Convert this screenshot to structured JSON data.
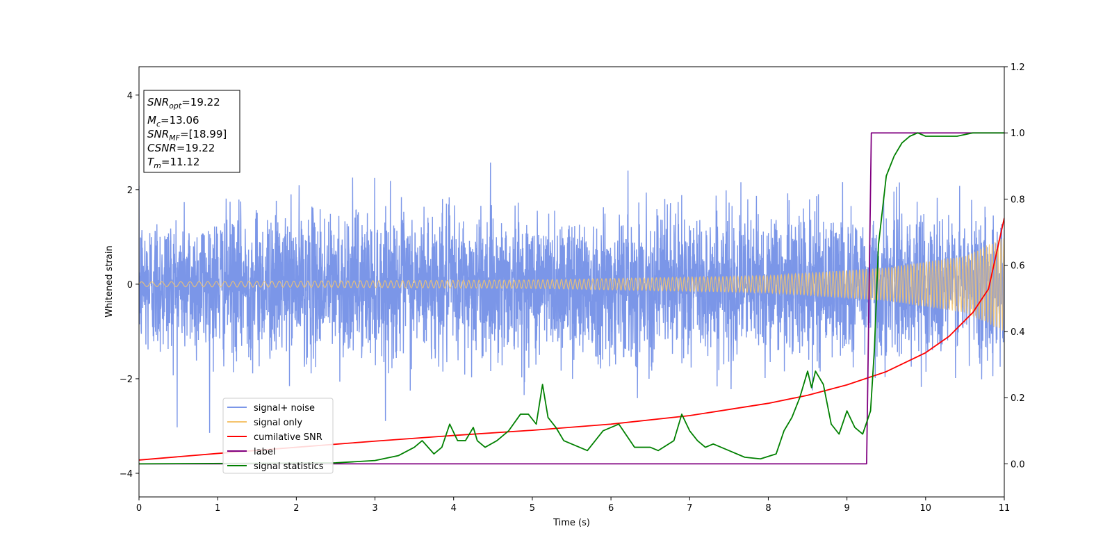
{
  "chart_data": {
    "type": "line",
    "xlabel": "Time (s)",
    "ylabel": "Whitened strain",
    "xlim": [
      0,
      11
    ],
    "ylim_left": [
      -4.5,
      4.6
    ],
    "ylim_right": [
      -0.1,
      1.2
    ],
    "x_ticks": [
      0,
      1,
      2,
      3,
      4,
      5,
      6,
      7,
      8,
      9,
      10,
      11
    ],
    "y_ticks_left": [
      -4,
      -2,
      0,
      2,
      4
    ],
    "y_ticks_right": [
      "0.0",
      "0.2",
      "0.4",
      "0.6",
      "0.8",
      "1.0",
      "1.2"
    ],
    "grid": false,
    "legend_position": "lower-left",
    "info_box": {
      "position": "top-left",
      "lines": [
        {
          "base": "SNR",
          "sub": "opt",
          "value": "=19.22"
        },
        {
          "base": "M",
          "sub": "c",
          "value": "=13.06"
        },
        {
          "base": "SNR",
          "sub": "MF",
          "value": "=[18.99]"
        },
        {
          "base": "CSNR",
          "sub": "",
          "value": "=19.22"
        },
        {
          "base": "T",
          "sub": "m",
          "value": "=11.12"
        }
      ]
    },
    "series": [
      {
        "name": "signal+ noise",
        "axis": "left",
        "color": "#7b96e8",
        "noise_std": 0.75,
        "noise_peak": 3.4
      },
      {
        "name": "signal only",
        "axis": "left",
        "color": "#f5c46c",
        "envelope": [
          [
            0,
            0.05
          ],
          [
            5,
            0.09
          ],
          [
            8,
            0.18
          ],
          [
            9.5,
            0.35
          ],
          [
            10.5,
            0.6
          ],
          [
            11,
            1.0
          ]
        ]
      },
      {
        "name": "cumilative SNR",
        "axis": "left",
        "color": "#ff0000",
        "x": [
          0,
          1,
          2,
          3,
          4,
          5,
          6,
          7,
          8,
          8.5,
          9,
          9.5,
          10,
          10.3,
          10.6,
          10.8,
          11
        ],
        "y": [
          -3.72,
          -3.58,
          -3.45,
          -3.32,
          -3.2,
          -3.09,
          -2.96,
          -2.78,
          -2.52,
          -2.35,
          -2.13,
          -1.85,
          -1.45,
          -1.1,
          -0.6,
          -0.1,
          1.4
        ]
      },
      {
        "name": "label",
        "axis": "right",
        "color": "#800080",
        "x": [
          0,
          9.25,
          9.31,
          11
        ],
        "y": [
          0.0,
          0.0,
          1.0,
          1.0
        ]
      },
      {
        "name": "signal statistics",
        "axis": "right",
        "color": "#008000",
        "x": [
          0,
          2.5,
          3.0,
          3.3,
          3.5,
          3.6,
          3.75,
          3.85,
          3.95,
          4.05,
          4.15,
          4.25,
          4.3,
          4.4,
          4.55,
          4.7,
          4.85,
          4.95,
          5.05,
          5.13,
          5.2,
          5.3,
          5.4,
          5.5,
          5.7,
          5.9,
          6.1,
          6.3,
          6.5,
          6.6,
          6.8,
          6.9,
          7.0,
          7.1,
          7.2,
          7.3,
          7.5,
          7.7,
          7.9,
          8.1,
          8.2,
          8.3,
          8.4,
          8.5,
          8.55,
          8.6,
          8.7,
          8.8,
          8.9,
          9.0,
          9.1,
          9.2,
          9.3,
          9.35,
          9.4,
          9.5,
          9.6,
          9.7,
          9.8,
          9.9,
          10.0,
          10.2,
          10.4,
          10.6,
          10.8,
          11.0
        ],
        "y": [
          0.0,
          0.003,
          0.01,
          0.025,
          0.05,
          0.07,
          0.03,
          0.05,
          0.12,
          0.07,
          0.07,
          0.11,
          0.07,
          0.05,
          0.07,
          0.1,
          0.15,
          0.15,
          0.12,
          0.24,
          0.14,
          0.11,
          0.07,
          0.06,
          0.04,
          0.1,
          0.12,
          0.05,
          0.05,
          0.04,
          0.07,
          0.15,
          0.1,
          0.07,
          0.05,
          0.06,
          0.04,
          0.02,
          0.015,
          0.03,
          0.1,
          0.14,
          0.2,
          0.28,
          0.23,
          0.28,
          0.24,
          0.12,
          0.09,
          0.16,
          0.11,
          0.09,
          0.16,
          0.35,
          0.66,
          0.87,
          0.93,
          0.97,
          0.99,
          1.0,
          0.99,
          0.99,
          0.99,
          1.0,
          1.0,
          1.0
        ]
      }
    ]
  }
}
